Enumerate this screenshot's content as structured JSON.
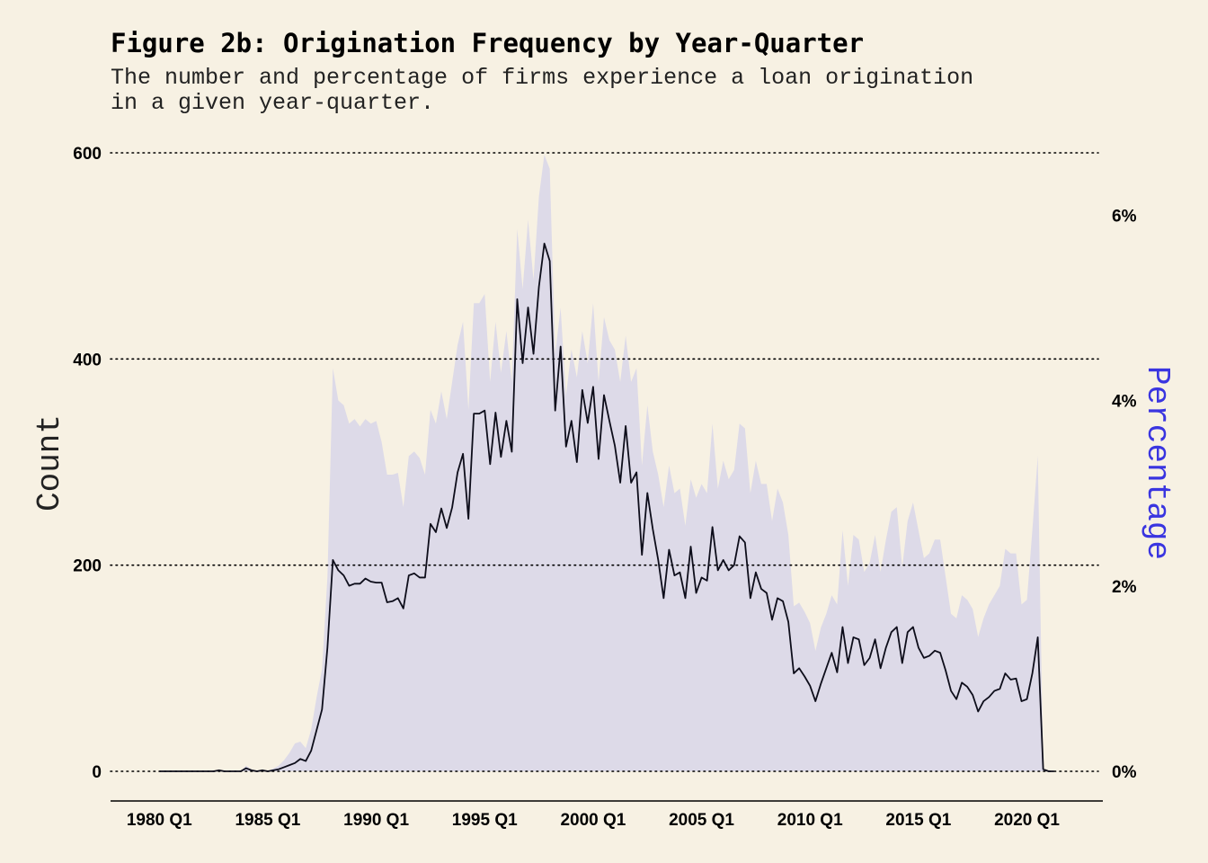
{
  "colors": {
    "background": "#f7f1e3",
    "area_fill": "#dddae8",
    "line": "#0d0d1a",
    "grid": "#000000",
    "secondary_axis_title": "#3a35e0"
  },
  "chart_data": {
    "type": "line",
    "title": "Figure 2b: Origination Frequency by Year-Quarter",
    "subtitle_lines": [
      "The number and percentage of firms experience a loan origination",
      "in a given year-quarter."
    ],
    "xlabel": "",
    "ylabel": "Count",
    "ylabel_right": "Percentage",
    "x_tick_labels": [
      "1980 Q1",
      "1985 Q1",
      "1990 Q1",
      "1995 Q1",
      "2000 Q1",
      "2005 Q1",
      "2010 Q1",
      "2015 Q1",
      "2020 Q1"
    ],
    "x_tick_years": [
      1980,
      1985,
      1990,
      1995,
      2000,
      2005,
      2010,
      2015,
      2020
    ],
    "xlim": [
      1977.75,
      2023.5
    ],
    "ylim": [
      -25,
      600
    ],
    "y_ticks": [
      0,
      200,
      400,
      600
    ],
    "y_tick_labels": [
      "0",
      "200",
      "400",
      "600"
    ],
    "y2_ticks": [
      0,
      2,
      4,
      6
    ],
    "y2_tick_labels": [
      "0%",
      "2%",
      "4%",
      "6%"
    ],
    "y2_per_y1": 0.01112,
    "grid": "horizontal dotted",
    "series": [
      {
        "name": "Count",
        "type": "line",
        "x": [
          1980.0,
          1980.25,
          1980.5,
          1980.75,
          1981.0,
          1981.25,
          1981.5,
          1981.75,
          1982.0,
          1982.25,
          1982.5,
          1982.75,
          1983.0,
          1983.25,
          1983.5,
          1983.75,
          1984.0,
          1984.25,
          1984.5,
          1984.75,
          1985.0,
          1985.25,
          1985.5,
          1985.75,
          1986.0,
          1986.25,
          1986.5,
          1986.75,
          1987.0,
          1987.25,
          1987.5,
          1987.75,
          1988.0,
          1988.25,
          1988.5,
          1988.75,
          1989.0,
          1989.25,
          1989.5,
          1989.75,
          1990.0,
          1990.25,
          1990.5,
          1990.75,
          1991.0,
          1991.25,
          1991.5,
          1991.75,
          1992.0,
          1992.25,
          1992.5,
          1992.75,
          1993.0,
          1993.25,
          1993.5,
          1993.75,
          1994.0,
          1994.25,
          1994.5,
          1994.75,
          1995.0,
          1995.25,
          1995.5,
          1995.75,
          1996.0,
          1996.25,
          1996.5,
          1996.75,
          1997.0,
          1997.25,
          1997.5,
          1997.75,
          1998.0,
          1998.25,
          1998.5,
          1998.75,
          1999.0,
          1999.25,
          1999.5,
          1999.75,
          2000.0,
          2000.25,
          2000.5,
          2000.75,
          2001.0,
          2001.25,
          2001.5,
          2001.75,
          2002.0,
          2002.25,
          2002.5,
          2002.75,
          2003.0,
          2003.25,
          2003.5,
          2003.75,
          2004.0,
          2004.25,
          2004.5,
          2004.75,
          2005.0,
          2005.25,
          2005.5,
          2005.75,
          2006.0,
          2006.25,
          2006.5,
          2006.75,
          2007.0,
          2007.25,
          2007.5,
          2007.75,
          2008.0,
          2008.25,
          2008.5,
          2008.75,
          2009.0,
          2009.25,
          2009.5,
          2009.75,
          2010.0,
          2010.25,
          2010.5,
          2010.75,
          2011.0,
          2011.25,
          2011.5,
          2011.75,
          2012.0,
          2012.25,
          2012.5,
          2012.75,
          2013.0,
          2013.25,
          2013.5,
          2013.75,
          2014.0,
          2014.25,
          2014.5,
          2014.75,
          2015.0,
          2015.25,
          2015.5,
          2015.75,
          2016.0,
          2016.25,
          2016.5,
          2016.75,
          2017.0,
          2017.25,
          2017.5,
          2017.75,
          2018.0,
          2018.25,
          2018.5,
          2018.75,
          2019.0,
          2019.25,
          2019.5,
          2019.75,
          2020.0,
          2020.25,
          2020.5,
          2020.75,
          2021.0,
          2021.25
        ],
        "values": [
          0,
          0,
          0,
          0,
          0,
          0,
          0,
          0,
          0,
          0,
          0,
          1,
          0,
          0,
          0,
          0,
          3,
          1,
          0,
          1,
          0,
          1,
          2,
          4,
          6,
          8,
          12,
          10,
          20,
          40,
          60,
          120,
          205,
          195,
          190,
          180,
          182,
          182,
          187,
          184,
          183,
          183,
          164,
          165,
          168,
          158,
          190,
          192,
          188,
          188,
          240,
          232,
          255,
          236,
          256,
          290,
          308,
          245,
          347,
          347,
          350,
          298,
          348,
          305,
          340,
          310,
          458,
          396,
          450,
          405,
          470,
          512,
          495,
          350,
          412,
          315,
          340,
          300,
          370,
          338,
          373,
          303,
          365,
          340,
          316,
          280,
          335,
          280,
          290,
          210,
          270,
          235,
          205,
          168,
          215,
          190,
          193,
          168,
          218,
          173,
          188,
          185,
          237,
          195,
          205,
          195,
          200,
          228,
          222,
          168,
          193,
          177,
          173,
          147,
          168,
          165,
          145,
          95,
          100,
          92,
          83,
          68,
          85,
          100,
          115,
          96,
          140,
          105,
          130,
          128,
          103,
          110,
          128,
          100,
          120,
          135,
          140,
          105,
          135,
          140,
          120,
          110,
          112,
          117,
          115,
          98,
          78,
          70,
          86,
          82,
          74,
          58,
          68,
          72,
          78,
          80,
          95,
          89,
          90,
          68,
          70,
          95,
          130,
          2,
          0,
          0
        ],
        "color": "#0d0d1a"
      },
      {
        "name": "Percentage",
        "type": "area",
        "axis": "right",
        "x": [
          1980.0,
          1980.25,
          1980.5,
          1980.75,
          1981.0,
          1981.25,
          1981.5,
          1981.75,
          1982.0,
          1982.25,
          1982.5,
          1982.75,
          1983.0,
          1983.25,
          1983.5,
          1983.75,
          1984.0,
          1984.25,
          1984.5,
          1984.75,
          1985.0,
          1985.25,
          1985.5,
          1985.75,
          1986.0,
          1986.25,
          1986.5,
          1986.75,
          1987.0,
          1987.25,
          1987.5,
          1987.75,
          1988.0,
          1988.25,
          1988.5,
          1988.75,
          1989.0,
          1989.25,
          1989.5,
          1989.75,
          1990.0,
          1990.25,
          1990.5,
          1990.75,
          1991.0,
          1991.25,
          1991.5,
          1991.75,
          1992.0,
          1992.25,
          1992.5,
          1992.75,
          1993.0,
          1993.25,
          1993.5,
          1993.75,
          1994.0,
          1994.25,
          1994.5,
          1994.75,
          1995.0,
          1995.25,
          1995.5,
          1995.75,
          1996.0,
          1996.25,
          1996.5,
          1996.75,
          1997.0,
          1997.25,
          1997.5,
          1997.75,
          1998.0,
          1998.25,
          1998.5,
          1998.75,
          1999.0,
          1999.25,
          1999.5,
          1999.75,
          2000.0,
          2000.25,
          2000.5,
          2000.75,
          2001.0,
          2001.25,
          2001.5,
          2001.75,
          2002.0,
          2002.25,
          2002.5,
          2002.75,
          2003.0,
          2003.25,
          2003.5,
          2003.75,
          2004.0,
          2004.25,
          2004.5,
          2004.75,
          2005.0,
          2005.25,
          2005.5,
          2005.75,
          2006.0,
          2006.25,
          2006.5,
          2006.75,
          2007.0,
          2007.25,
          2007.5,
          2007.75,
          2008.0,
          2008.25,
          2008.5,
          2008.75,
          2009.0,
          2009.25,
          2009.5,
          2009.75,
          2010.0,
          2010.25,
          2010.5,
          2010.75,
          2011.0,
          2011.25,
          2011.5,
          2011.75,
          2012.0,
          2012.25,
          2012.5,
          2012.75,
          2013.0,
          2013.25,
          2013.5,
          2013.75,
          2014.0,
          2014.25,
          2014.5,
          2014.75,
          2015.0,
          2015.25,
          2015.5,
          2015.75,
          2016.0,
          2016.25,
          2016.5,
          2016.75,
          2017.0,
          2017.25,
          2017.5,
          2017.75,
          2018.0,
          2018.25,
          2018.5,
          2018.75,
          2019.0,
          2019.25,
          2019.5,
          2019.75,
          2020.0,
          2020.25,
          2020.5,
          2020.75,
          2021.0,
          2021.25
        ],
        "values": [
          0,
          0,
          0,
          0,
          0,
          0,
          0,
          0,
          0,
          0,
          0,
          0.02,
          0,
          0,
          0,
          0,
          0.06,
          0.02,
          0,
          0.02,
          0,
          0.03,
          0.06,
          0.12,
          0.2,
          0.3,
          0.32,
          0.25,
          0.45,
          0.8,
          1.1,
          2.1,
          4.35,
          4.0,
          3.95,
          3.75,
          3.8,
          3.72,
          3.8,
          3.75,
          3.78,
          3.55,
          3.2,
          3.2,
          3.22,
          2.85,
          3.4,
          3.45,
          3.38,
          3.2,
          3.9,
          3.75,
          4.1,
          3.8,
          4.2,
          4.6,
          4.85,
          3.9,
          5.05,
          5.05,
          5.15,
          4.2,
          4.85,
          4.3,
          4.75,
          4.2,
          5.85,
          5.2,
          5.95,
          5.3,
          6.2,
          6.65,
          6.5,
          4.5,
          5.0,
          4.05,
          4.55,
          4.25,
          4.75,
          4.4,
          5.05,
          4.2,
          4.9,
          4.65,
          4.55,
          4.2,
          4.7,
          4.2,
          4.35,
          3.3,
          3.95,
          3.45,
          3.2,
          2.85,
          3.3,
          3.0,
          3.05,
          2.65,
          3.15,
          2.95,
          3.1,
          3.0,
          3.75,
          3.05,
          3.35,
          3.15,
          3.25,
          3.75,
          3.7,
          3.0,
          3.35,
          3.1,
          3.1,
          2.7,
          3.05,
          2.9,
          2.55,
          1.78,
          1.82,
          1.72,
          1.6,
          1.3,
          1.55,
          1.7,
          1.9,
          1.8,
          2.6,
          2.0,
          2.55,
          2.5,
          2.15,
          2.25,
          2.55,
          2.15,
          2.5,
          2.8,
          2.85,
          2.2,
          2.7,
          2.9,
          2.6,
          2.3,
          2.35,
          2.5,
          2.5,
          2.1,
          1.7,
          1.65,
          1.9,
          1.85,
          1.75,
          1.45,
          1.65,
          1.8,
          1.9,
          2.0,
          2.4,
          2.35,
          2.35,
          1.8,
          1.85,
          2.6,
          3.4,
          0.02,
          0,
          0
        ],
        "color": "#dddae8"
      }
    ]
  }
}
